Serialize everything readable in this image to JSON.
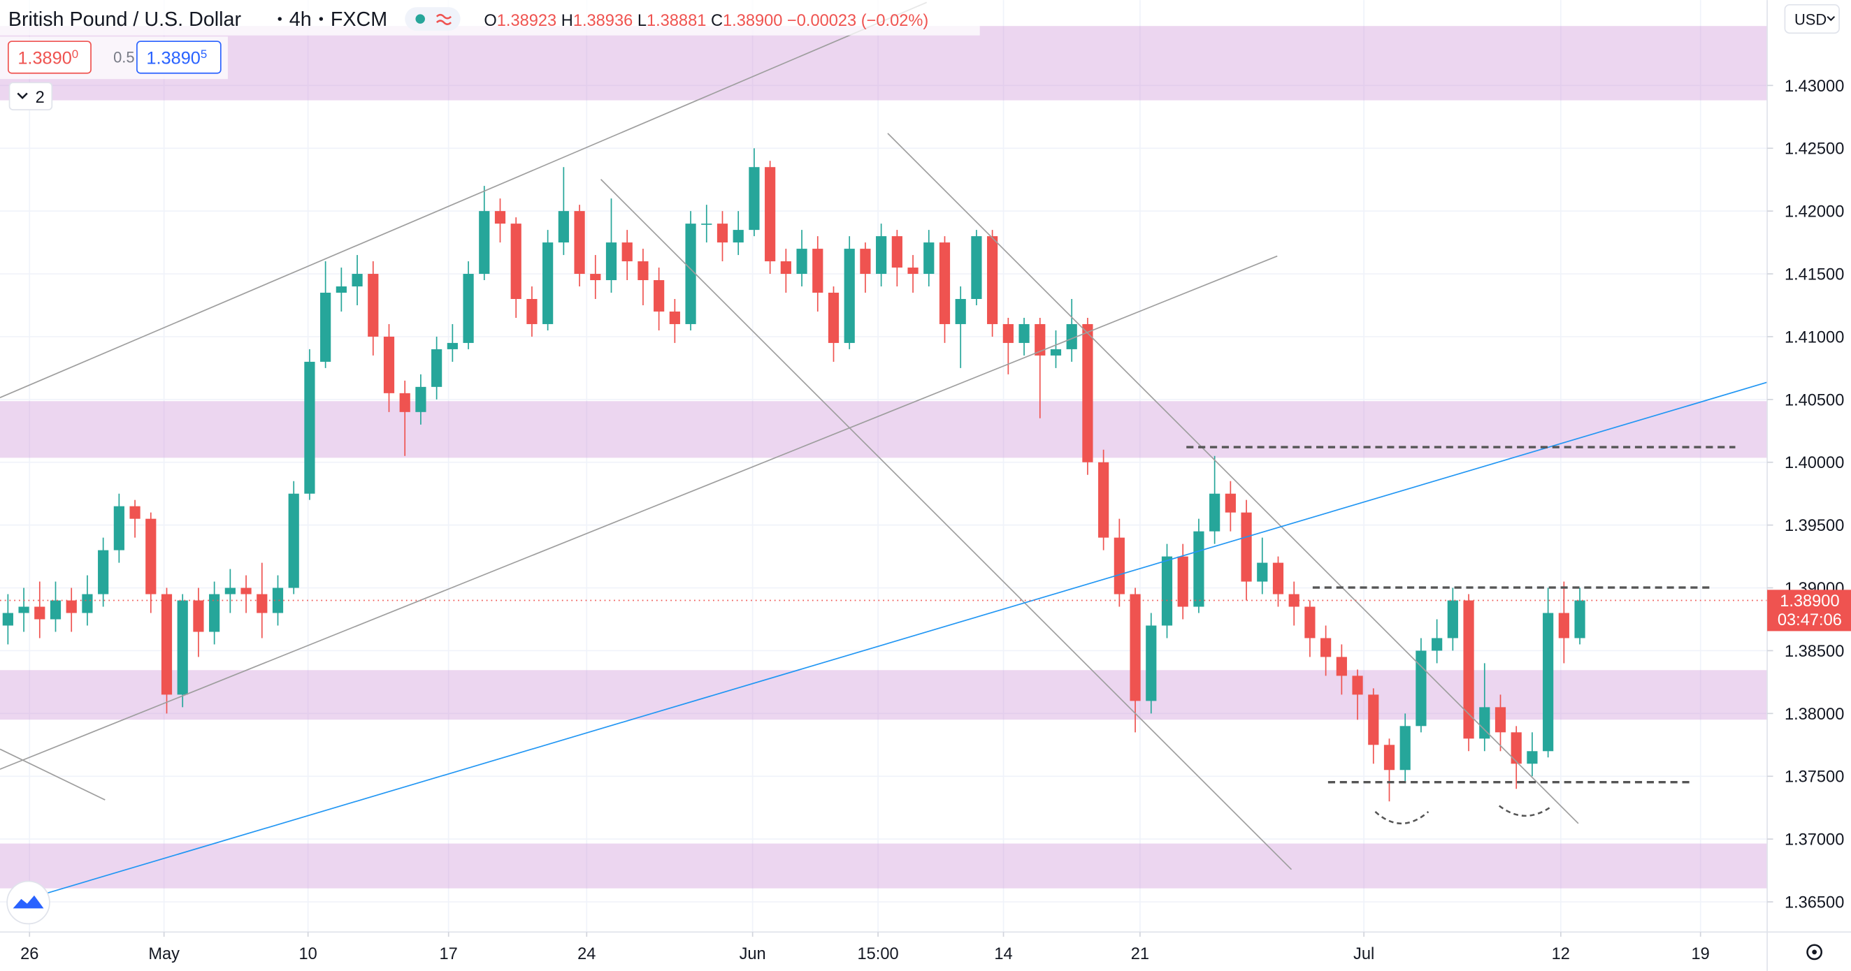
{
  "header": {
    "title": "British Pound / U.S. Dollar",
    "interval": "4h",
    "source": "FXCM",
    "ohlc": [
      {
        "label": "O",
        "value": "1.38923"
      },
      {
        "label": "H",
        "value": "1.38936"
      },
      {
        "label": "L",
        "value": "1.38881"
      },
      {
        "label": "C",
        "value": "1.38900"
      }
    ],
    "change": "−0.00023 (−0.02%)",
    "sell_price": "1.3890",
    "sell_pip": "0",
    "spread": "0.5",
    "buy_price": "1.3890",
    "buy_pip": "5",
    "indicators_count": "2",
    "currency": "USD"
  },
  "chart_data": {
    "type": "candlestick",
    "up_color": "#26a69a",
    "down_color": "#ef5350",
    "open": [
      1.387,
      1.388,
      1.3885,
      1.3875,
      1.389,
      1.388,
      1.3895,
      1.393,
      1.3965,
      1.3955,
      1.3895,
      1.3815,
      1.389,
      1.3865,
      1.3895,
      1.39,
      1.3895,
      1.388,
      1.39,
      1.3975,
      1.408,
      1.4135,
      1.414,
      1.415,
      1.41,
      1.4055,
      1.404,
      1.406,
      1.409,
      1.4095,
      1.415,
      1.42,
      1.419,
      1.413,
      1.411,
      1.4175,
      1.42,
      1.415,
      1.4145,
      1.4175,
      1.416,
      1.4145,
      1.412,
      1.411,
      1.419,
      1.419,
      1.4175,
      1.4185,
      1.4235,
      1.416,
      1.415,
      1.417,
      1.4135,
      1.4095,
      1.417,
      1.415,
      1.418,
      1.4155,
      1.415,
      1.4175,
      1.411,
      1.413,
      1.418,
      1.411,
      1.4095,
      1.411,
      1.4085,
      1.409,
      1.411,
      1.4,
      1.394,
      1.3895,
      1.381,
      1.387,
      1.3925,
      1.3885,
      1.3945,
      1.3975,
      1.396,
      1.3905,
      1.392,
      1.3895,
      1.3885,
      1.386,
      1.3845,
      1.383,
      1.3815,
      1.3775,
      1.3755,
      1.379,
      1.385,
      1.386,
      1.389,
      1.378,
      1.3805,
      1.3785,
      1.376,
      1.377,
      1.388,
      1.386
    ],
    "high": [
      1.3895,
      1.39,
      1.3905,
      1.3905,
      1.39,
      1.391,
      1.394,
      1.3975,
      1.397,
      1.396,
      1.39,
      1.3895,
      1.39,
      1.3905,
      1.3915,
      1.391,
      1.392,
      1.391,
      1.3985,
      1.409,
      1.416,
      1.4155,
      1.4165,
      1.416,
      1.411,
      1.4065,
      1.407,
      1.41,
      1.411,
      1.416,
      1.422,
      1.421,
      1.4195,
      1.414,
      1.4185,
      1.4235,
      1.4205,
      1.4165,
      1.421,
      1.4185,
      1.417,
      1.4155,
      1.413,
      1.42,
      1.4205,
      1.42,
      1.42,
      1.425,
      1.424,
      1.417,
      1.4185,
      1.418,
      1.414,
      1.418,
      1.4175,
      1.419,
      1.4185,
      1.4165,
      1.4185,
      1.418,
      1.414,
      1.4185,
      1.4185,
      1.4115,
      1.4115,
      1.4115,
      1.4105,
      1.413,
      1.4115,
      1.401,
      1.3955,
      1.39,
      1.388,
      1.3935,
      1.3935,
      1.3955,
      1.4005,
      1.3985,
      1.397,
      1.394,
      1.3925,
      1.3905,
      1.389,
      1.387,
      1.3855,
      1.3835,
      1.382,
      1.378,
      1.38,
      1.386,
      1.3875,
      1.39,
      1.3895,
      1.384,
      1.3815,
      1.379,
      1.3785,
      1.39,
      1.3905,
      1.39
    ],
    "low": [
      1.3855,
      1.3865,
      1.386,
      1.3865,
      1.3865,
      1.387,
      1.3885,
      1.392,
      1.394,
      1.388,
      1.38,
      1.3805,
      1.3845,
      1.3855,
      1.388,
      1.388,
      1.386,
      1.387,
      1.3895,
      1.397,
      1.4075,
      1.412,
      1.4125,
      1.4085,
      1.404,
      1.4005,
      1.403,
      1.405,
      1.408,
      1.409,
      1.4145,
      1.4175,
      1.4115,
      1.41,
      1.4105,
      1.4165,
      1.414,
      1.413,
      1.4135,
      1.4145,
      1.4125,
      1.4105,
      1.4095,
      1.4105,
      1.4175,
      1.416,
      1.4165,
      1.418,
      1.415,
      1.4135,
      1.414,
      1.412,
      1.408,
      1.409,
      1.4135,
      1.414,
      1.414,
      1.4135,
      1.414,
      1.4095,
      1.4075,
      1.4125,
      1.41,
      1.407,
      1.4085,
      1.4035,
      1.4075,
      1.408,
      1.399,
      1.393,
      1.3885,
      1.3785,
      1.38,
      1.386,
      1.3875,
      1.388,
      1.3935,
      1.3945,
      1.389,
      1.3895,
      1.3885,
      1.387,
      1.3845,
      1.383,
      1.3815,
      1.3795,
      1.376,
      1.373,
      1.3745,
      1.3785,
      1.384,
      1.385,
      1.377,
      1.377,
      1.377,
      1.374,
      1.375,
      1.3765,
      1.384,
      1.3855
    ],
    "close": [
      1.388,
      1.3885,
      1.3875,
      1.389,
      1.388,
      1.3895,
      1.393,
      1.3965,
      1.3955,
      1.3895,
      1.3815,
      1.389,
      1.3865,
      1.3895,
      1.39,
      1.3895,
      1.388,
      1.39,
      1.3975,
      1.408,
      1.4135,
      1.414,
      1.415,
      1.41,
      1.4055,
      1.404,
      1.406,
      1.409,
      1.4095,
      1.415,
      1.42,
      1.419,
      1.413,
      1.411,
      1.4175,
      1.42,
      1.415,
      1.4145,
      1.4175,
      1.416,
      1.4145,
      1.412,
      1.411,
      1.419,
      1.419,
      1.4175,
      1.4185,
      1.4235,
      1.416,
      1.415,
      1.417,
      1.4135,
      1.4095,
      1.417,
      1.415,
      1.418,
      1.4155,
      1.415,
      1.4175,
      1.411,
      1.413,
      1.418,
      1.411,
      1.4095,
      1.411,
      1.4085,
      1.409,
      1.411,
      1.4,
      1.394,
      1.3895,
      1.381,
      1.387,
      1.3925,
      1.3885,
      1.3945,
      1.3975,
      1.396,
      1.3905,
      1.392,
      1.3895,
      1.3885,
      1.386,
      1.3845,
      1.383,
      1.3815,
      1.3775,
      1.3755,
      1.379,
      1.385,
      1.386,
      1.389,
      1.378,
      1.3805,
      1.3785,
      1.376,
      1.377,
      1.388,
      1.386,
      1.389
    ],
    "xlim": [
      0,
      111.3
    ],
    "xticks": [
      {
        "value": 1.86,
        "label": "26"
      },
      {
        "value": 10.33,
        "label": "May"
      },
      {
        "value": 19.4,
        "label": "10"
      },
      {
        "value": 28.25,
        "label": "17"
      },
      {
        "value": 36.95,
        "label": "24"
      },
      {
        "value": 47.4,
        "label": "Jun"
      },
      {
        "value": 55.3,
        "label": "15:00"
      },
      {
        "value": 63.2,
        "label": "14"
      },
      {
        "value": 71.8,
        "label": "21"
      },
      {
        "value": 85.9,
        "label": "Jul"
      },
      {
        "value": 98.3,
        "label": "12"
      },
      {
        "value": 107.1,
        "label": "19"
      }
    ],
    "ylim": [
      1.3626,
      1.4368
    ],
    "yticks": [
      {
        "value": 1.365,
        "label": "1.36500"
      },
      {
        "value": 1.37,
        "label": "1.37000"
      },
      {
        "value": 1.375,
        "label": "1.37500"
      },
      {
        "value": 1.38,
        "label": "1.38000"
      },
      {
        "value": 1.385,
        "label": "1.38500"
      },
      {
        "value": 1.39,
        "label": "1.39000"
      },
      {
        "value": 1.395,
        "label": "1.39500"
      },
      {
        "value": 1.4,
        "label": "1.40000"
      },
      {
        "value": 1.405,
        "label": "1.40500"
      },
      {
        "value": 1.41,
        "label": "1.41000"
      },
      {
        "value": 1.415,
        "label": "1.41500"
      },
      {
        "value": 1.42,
        "label": "1.42000"
      },
      {
        "value": 1.425,
        "label": "1.42500"
      },
      {
        "value": 1.43,
        "label": "1.43000"
      }
    ],
    "grid": true,
    "last_price": {
      "value": 1.389,
      "label": "1.38900"
    },
    "countdown": "03:47:06"
  }
}
